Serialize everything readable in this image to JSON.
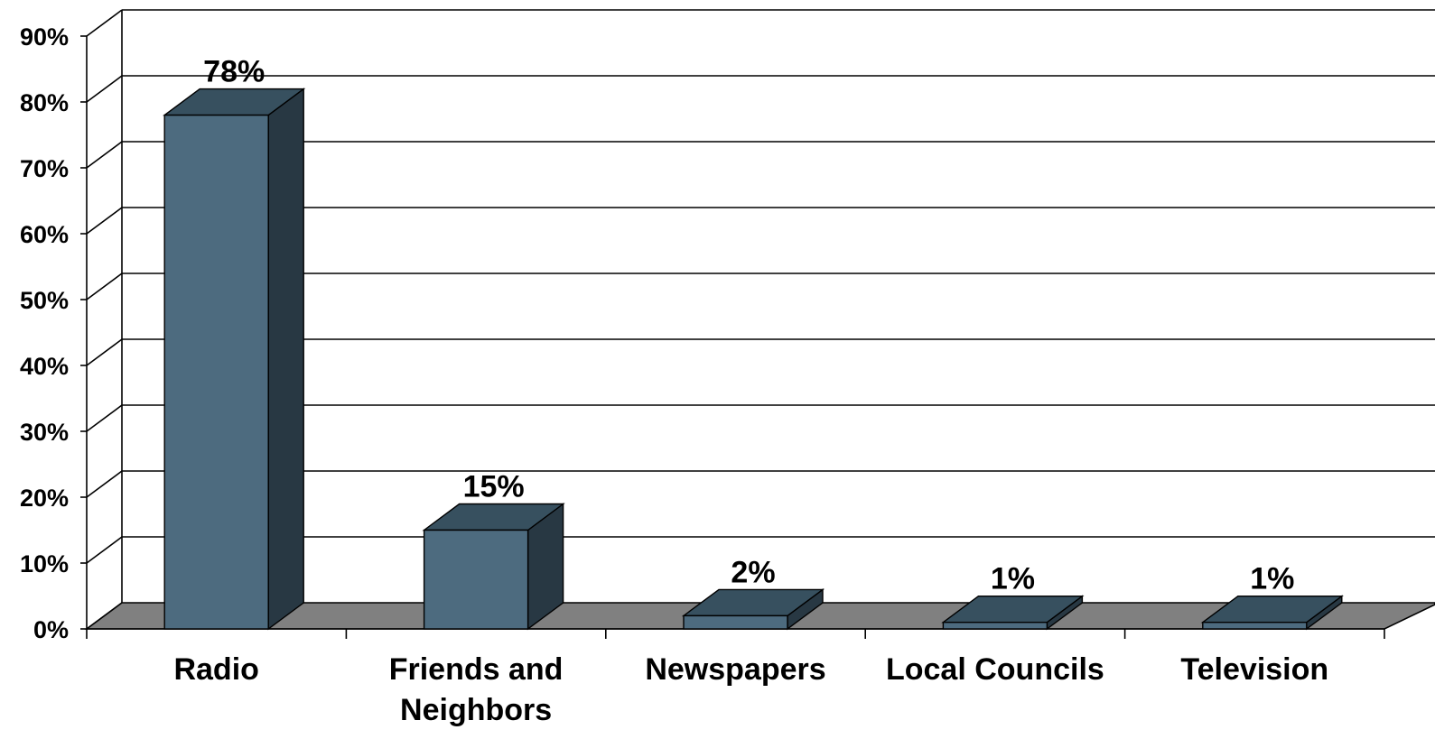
{
  "chart_data": {
    "type": "bar",
    "title": "",
    "xlabel": "",
    "ylabel": "",
    "categories": [
      "Radio",
      "Friends and Neighbors",
      "Newspapers",
      "Local Councils",
      "Television"
    ],
    "category_lines": [
      [
        "Radio"
      ],
      [
        "Friends and",
        "Neighbors"
      ],
      [
        "Newspapers"
      ],
      [
        "Local Councils"
      ],
      [
        "Television"
      ]
    ],
    "values": [
      78,
      15,
      2,
      1,
      1
    ],
    "data_labels": [
      "78%",
      "15%",
      "2%",
      "1%",
      "1%"
    ],
    "ylim": [
      0,
      90
    ],
    "yticks": [
      0,
      10,
      20,
      30,
      40,
      50,
      60,
      70,
      80,
      90
    ],
    "ytick_labels": [
      "0%",
      "10%",
      "20%",
      "30%",
      "40%",
      "50%",
      "60%",
      "70%",
      "80%",
      "90%"
    ],
    "grid": true,
    "legend": "none",
    "style": "3d-column",
    "colors": {
      "bar_front": "#4d6b7f",
      "bar_top": "#37505f",
      "bar_side": "#283843",
      "floor": "#808080"
    }
  }
}
